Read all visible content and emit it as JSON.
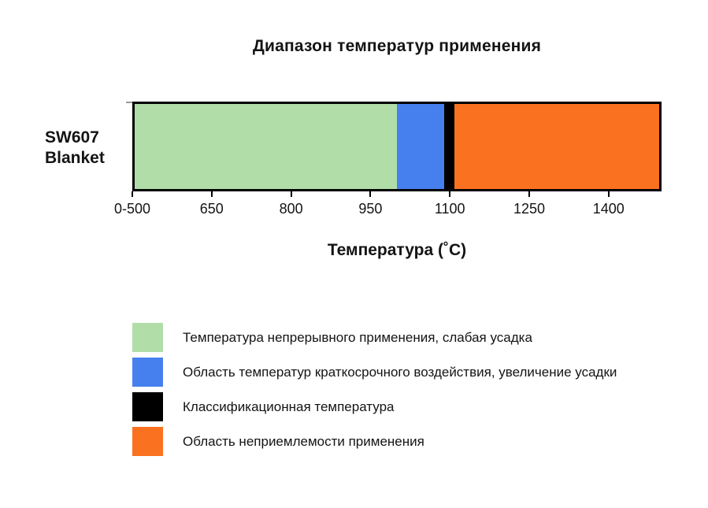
{
  "chart_data": {
    "type": "bar",
    "subtype": "horizontal-stacked-range",
    "title": "Диапазон температур применения",
    "xlabel": "Температура (˚C)",
    "series_label": {
      "line1": "SW607",
      "line2": "Blanket",
      "full": "SW607 Blanket"
    },
    "axis": {
      "min": 500,
      "max": 1500,
      "note": "left edge labeled 0-500 (compressed range)",
      "ticks": [
        {
          "label": "0-500",
          "value": 500
        },
        {
          "label": "650",
          "value": 650
        },
        {
          "label": "800",
          "value": 800
        },
        {
          "label": "950",
          "value": 950
        },
        {
          "label": "1100",
          "value": 1100
        },
        {
          "label": "1250",
          "value": 1250
        },
        {
          "label": "1400",
          "value": 1400
        }
      ]
    },
    "classification_temperature": 1100,
    "segments": [
      {
        "color": "green",
        "from": 500,
        "to": 1000,
        "name": "Температура непрерывного применения, слабая усадка"
      },
      {
        "color": "blue",
        "from": 1000,
        "to": 1090,
        "name": "Область температур краткосрочного воздействия, увеличение усадки"
      },
      {
        "color": "black",
        "from": 1090,
        "to": 1110,
        "name": "Классификационная температура"
      },
      {
        "color": "orange",
        "from": 1110,
        "to": 1500,
        "name": "Область неприемлемости применения"
      }
    ],
    "colors": {
      "green": "#b1dda8",
      "blue": "#4680ee",
      "black": "#000000",
      "orange": "#fa7120"
    },
    "layout": {
      "grid": false,
      "legend_position": "bottom-left",
      "bar_border_color": "#000000"
    }
  },
  "legend": {
    "items": [
      {
        "color": "green",
        "label": "Температура непрерывного применения, слабая усадка"
      },
      {
        "color": "blue",
        "label": "Область температур краткосрочного воздействия, увеличение усадки"
      },
      {
        "color": "black",
        "label": "Классификационная температура"
      },
      {
        "color": "orange",
        "label": "Область неприемлемости применения"
      }
    ]
  }
}
